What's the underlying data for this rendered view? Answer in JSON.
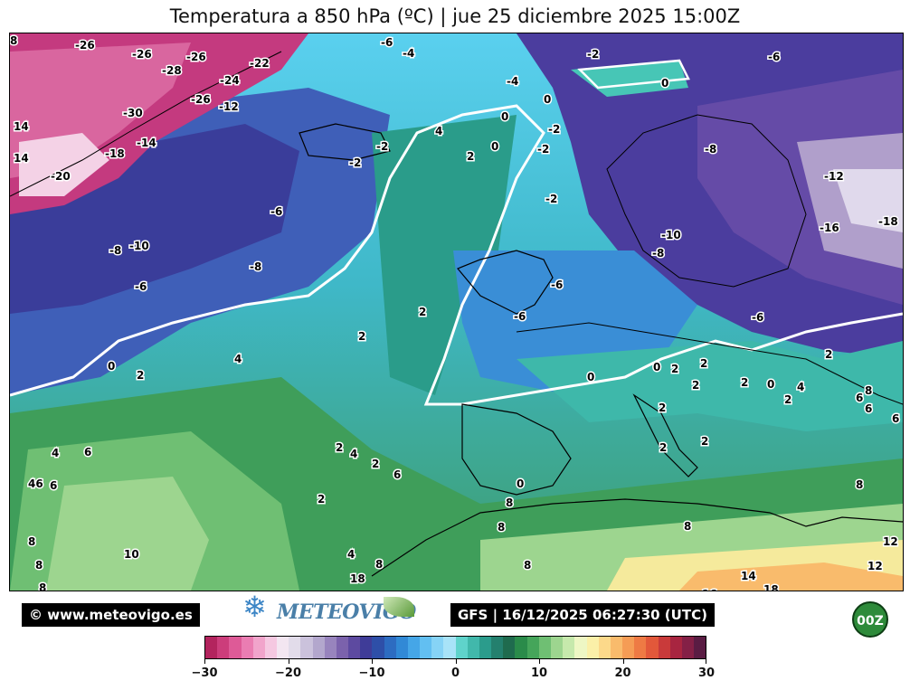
{
  "title": "Temperatura a 850 hPa (ºC) | jue 25 diciembre 2025 15:00Z",
  "credits": {
    "website": "© www.meteovigo.es",
    "model_run": "GFS | 16/12/2025 06:27:30 (UTC)",
    "brand": "METEOVIGO",
    "run_badge": "00Z"
  },
  "colorbar": {
    "ticks": [
      "−30",
      "−20",
      "−10",
      "0",
      "10",
      "20",
      "30"
    ],
    "colors": [
      "#b3245e",
      "#cc3d7b",
      "#de5a97",
      "#ea7db2",
      "#f1a4cb",
      "#f5c8e1",
      "#f3e6f1",
      "#e2dcea",
      "#cbc2dc",
      "#b3a7cd",
      "#9884bd",
      "#7b62ac",
      "#5d4aa0",
      "#3f3c98",
      "#2e4fa8",
      "#2d6cc1",
      "#3189d6",
      "#45a6e7",
      "#62bff1",
      "#86d3f6",
      "#a8e3f8",
      "#5fd3cb",
      "#41b8ab",
      "#2b9c8c",
      "#24806e",
      "#1f6b4e",
      "#2a8b4a",
      "#45a55a",
      "#6fbf73",
      "#9dd58f",
      "#c6e9ac",
      "#eef7c4",
      "#fbf0a8",
      "#fcd98a",
      "#f9bb6c",
      "#f59c55",
      "#ee7a44",
      "#e2583a",
      "#c93a3a",
      "#a82540",
      "#842046",
      "#5a1c43"
    ]
  },
  "map_labels": [
    {
      "t": "-26"
    },
    {
      "t": "-26"
    },
    {
      "t": "-26"
    },
    {
      "t": "-28"
    },
    {
      "t": "-24"
    },
    {
      "t": "-22"
    },
    {
      "t": "-26"
    },
    {
      "t": "-12"
    },
    {
      "t": "-30"
    },
    {
      "t": "-14"
    },
    {
      "t": "-18"
    },
    {
      "t": "-20"
    },
    {
      "t": "14"
    },
    {
      "t": "14"
    },
    {
      "t": "-4"
    },
    {
      "t": "-6"
    },
    {
      "t": "-4"
    },
    {
      "t": "-2"
    },
    {
      "t": "-6"
    },
    {
      "t": "0"
    },
    {
      "t": "0"
    },
    {
      "t": "0"
    },
    {
      "t": "4"
    },
    {
      "t": "-2"
    },
    {
      "t": "-2"
    },
    {
      "t": "-2"
    },
    {
      "t": "2"
    },
    {
      "t": "0"
    },
    {
      "t": "-2"
    },
    {
      "t": "-2"
    },
    {
      "t": "-8"
    },
    {
      "t": "-12"
    },
    {
      "t": "-16"
    },
    {
      "t": "-18"
    },
    {
      "t": "-10"
    },
    {
      "t": "-8"
    },
    {
      "t": "-6"
    },
    {
      "t": "-8"
    },
    {
      "t": "-10"
    },
    {
      "t": "-8"
    },
    {
      "t": "-6"
    },
    {
      "t": "-6"
    },
    {
      "t": "-6"
    },
    {
      "t": "-6"
    },
    {
      "t": "2"
    },
    {
      "t": "2"
    },
    {
      "t": "4"
    },
    {
      "t": "0"
    },
    {
      "t": "2"
    },
    {
      "t": "0"
    },
    {
      "t": "0"
    },
    {
      "t": "2"
    },
    {
      "t": "2"
    },
    {
      "t": "2"
    },
    {
      "t": "2"
    },
    {
      "t": "0"
    },
    {
      "t": "4"
    },
    {
      "t": "2"
    },
    {
      "t": "2"
    },
    {
      "t": "6"
    },
    {
      "t": "8"
    },
    {
      "t": "6"
    },
    {
      "t": "6"
    },
    {
      "t": "2"
    },
    {
      "t": "2"
    },
    {
      "t": "2"
    },
    {
      "t": "4"
    },
    {
      "t": "2"
    },
    {
      "t": "2"
    },
    {
      "t": "6"
    },
    {
      "t": "2"
    },
    {
      "t": "0"
    },
    {
      "t": "8"
    },
    {
      "t": "8"
    },
    {
      "t": "8"
    },
    {
      "t": "8"
    },
    {
      "t": "8"
    },
    {
      "t": "8"
    },
    {
      "t": "8"
    },
    {
      "t": "4"
    },
    {
      "t": "4"
    },
    {
      "t": "6"
    },
    {
      "t": "6"
    },
    {
      "t": "46"
    },
    {
      "t": "8"
    },
    {
      "t": "8"
    },
    {
      "t": "10"
    },
    {
      "t": "12"
    },
    {
      "t": "12"
    },
    {
      "t": "14"
    },
    {
      "t": "-16"
    },
    {
      "t": "18"
    },
    {
      "t": "18"
    },
    {
      "t": "8"
    }
  ]
}
